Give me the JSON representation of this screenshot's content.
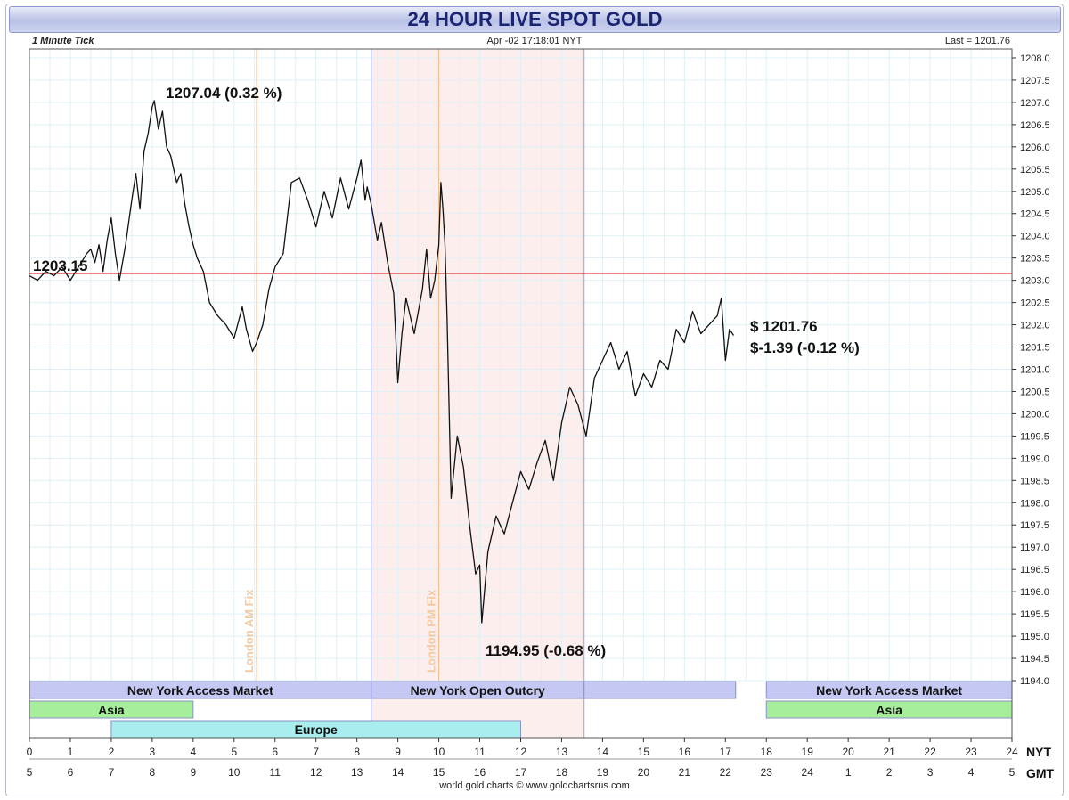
{
  "header": {
    "title": "24 HOUR LIVE SPOT GOLD",
    "tick": "1 Minute Tick",
    "datetime": "Apr -02  17:18:01  NYT",
    "last": "Last = 1201.76"
  },
  "footer": "world gold charts © www.goldchartsrus.com",
  "colors": {
    "price_line": "#111111",
    "prev_close_line": "#e03030",
    "fix_line": "#f2b98a",
    "session_line": "#9aa0e0",
    "open_outcry_shade": "#fdeeee",
    "ny_band": "#c4c8f2",
    "asia_band": "#a6ee9c",
    "europe_band": "#a8eeee"
  },
  "chart_data": {
    "type": "line",
    "title": "24 HOUR LIVE SPOT GOLD",
    "xlabel": "",
    "ylabel": "",
    "x_axis_nyt_ticks": [
      "0",
      "1",
      "2",
      "3",
      "4",
      "5",
      "6",
      "7",
      "8",
      "9",
      "10",
      "11",
      "12",
      "13",
      "14",
      "15",
      "16",
      "17",
      "18",
      "19",
      "20",
      "21",
      "22",
      "23",
      "24"
    ],
    "x_axis_gmt_ticks": [
      "5",
      "6",
      "7",
      "8",
      "9",
      "10",
      "11",
      "12",
      "13",
      "14",
      "15",
      "16",
      "17",
      "18",
      "19",
      "20",
      "21",
      "22",
      "23",
      "24",
      "1",
      "2",
      "3",
      "4",
      "5"
    ],
    "x_axis_nyt_label": "NYT",
    "x_axis_gmt_label": "GMT",
    "xlim": [
      0,
      24
    ],
    "ylim": [
      1194.0,
      1208.2
    ],
    "y_ticks": [
      "1208.0",
      "1207.5",
      "1207.0",
      "1206.5",
      "1206.0",
      "1205.5",
      "1205.0",
      "1204.5",
      "1204.0",
      "1203.5",
      "1203.0",
      "1202.5",
      "1202.0",
      "1201.5",
      "1201.0",
      "1200.5",
      "1200.0",
      "1199.5",
      "1199.0",
      "1198.5",
      "1198.0",
      "1197.5",
      "1197.0",
      "1196.5",
      "1196.0",
      "1195.5",
      "1195.0",
      "1194.5",
      "1194.0"
    ],
    "grid": true,
    "previous_close": 1203.15,
    "series": [
      {
        "x": [
          0.0,
          0.2,
          0.4,
          0.6,
          0.8,
          1.0,
          1.2,
          1.4,
          1.5,
          1.6,
          1.7,
          1.8,
          1.9,
          2.0,
          2.1,
          2.2,
          2.35,
          2.5,
          2.6,
          2.7,
          2.8,
          2.9,
          3.0,
          3.05,
          3.15,
          3.25,
          3.35,
          3.45,
          3.6,
          3.7,
          3.8,
          3.9,
          4.0,
          4.1,
          4.25,
          4.4,
          4.6,
          4.8,
          5.0,
          5.2,
          5.3,
          5.45,
          5.55,
          5.7,
          5.85,
          6.0,
          6.2,
          6.4,
          6.6,
          6.8,
          7.0,
          7.2,
          7.4,
          7.6,
          7.8,
          8.0,
          8.1,
          8.2,
          8.25,
          8.35,
          8.5,
          8.6,
          8.75,
          8.9,
          9.0,
          9.1,
          9.2,
          9.4,
          9.6,
          9.7,
          9.8,
          9.9,
          10.0,
          10.05,
          10.1,
          10.15,
          10.2,
          10.3,
          10.45,
          10.6,
          10.75,
          10.9,
          11.0,
          11.05,
          11.2,
          11.4,
          11.6,
          11.8,
          12.0,
          12.2,
          12.4,
          12.6,
          12.8,
          13.0,
          13.2,
          13.4,
          13.6,
          13.8,
          14.0,
          14.2,
          14.4,
          14.6,
          14.8,
          15.0,
          15.2,
          15.4,
          15.6,
          15.8,
          16.0,
          16.2,
          16.4,
          16.6,
          16.8,
          16.9,
          17.0,
          17.1,
          17.2
        ],
        "values": [
          1203.1,
          1203.0,
          1203.2,
          1203.1,
          1203.3,
          1203.0,
          1203.3,
          1203.6,
          1203.7,
          1203.4,
          1203.8,
          1203.2,
          1203.9,
          1204.4,
          1203.6,
          1203.0,
          1203.8,
          1204.8,
          1205.4,
          1204.6,
          1205.9,
          1206.3,
          1206.9,
          1207.04,
          1206.4,
          1206.8,
          1206.0,
          1205.8,
          1205.2,
          1205.4,
          1204.7,
          1204.2,
          1203.8,
          1203.5,
          1203.2,
          1202.5,
          1202.2,
          1202.0,
          1201.7,
          1202.4,
          1201.9,
          1201.4,
          1201.6,
          1202.0,
          1202.8,
          1203.3,
          1203.6,
          1205.2,
          1205.3,
          1204.8,
          1204.2,
          1205.0,
          1204.4,
          1205.3,
          1204.6,
          1205.3,
          1205.7,
          1204.8,
          1205.1,
          1204.7,
          1203.9,
          1204.3,
          1203.4,
          1202.7,
          1200.7,
          1201.8,
          1202.6,
          1201.8,
          1202.8,
          1203.7,
          1202.6,
          1203.0,
          1203.8,
          1205.2,
          1204.6,
          1203.8,
          1202.2,
          1198.1,
          1199.5,
          1198.8,
          1197.5,
          1196.4,
          1196.6,
          1195.3,
          1196.9,
          1197.7,
          1197.3,
          1198.0,
          1198.7,
          1198.3,
          1198.9,
          1199.4,
          1198.5,
          1199.8,
          1200.6,
          1200.2,
          1199.5,
          1200.8,
          1201.2,
          1201.6,
          1201.0,
          1201.4,
          1200.4,
          1200.9,
          1200.6,
          1201.2,
          1201.0,
          1201.9,
          1201.6,
          1202.3,
          1201.8,
          1202.0,
          1202.2,
          1202.6,
          1201.2,
          1201.9,
          1201.76
        ]
      }
    ],
    "vertical_markers": [
      {
        "x": 5.55,
        "label": "London AM Fix"
      },
      {
        "x": 10.0,
        "label": "London PM Fix"
      }
    ],
    "session_lines": [
      8.35,
      13.55
    ],
    "shaded_region": [
      8.35,
      13.55
    ],
    "annotations": {
      "high": "1207.04  (0.32 %)",
      "low": "1194.95  (-0.68 %)",
      "prev_close": "1203.15",
      "last_price": "$ 1201.76",
      "last_change": "$-1.39  (-0.12 %)"
    },
    "session_bands": [
      {
        "row": 0,
        "label": "New York Access Market",
        "start": 0.0,
        "end": 8.35,
        "kind": "ny"
      },
      {
        "row": 0,
        "label": "New York Open Outcry",
        "start": 8.35,
        "end": 13.55,
        "kind": "ny"
      },
      {
        "row": 0,
        "label": "",
        "start": 13.55,
        "end": 17.25,
        "kind": "ny"
      },
      {
        "row": 0,
        "label": "New York Access Market",
        "start": 18.0,
        "end": 24.0,
        "kind": "ny"
      },
      {
        "row": 1,
        "label": "Asia",
        "start": 0.0,
        "end": 4.0,
        "kind": "asia"
      },
      {
        "row": 1,
        "label": "Asia",
        "start": 18.0,
        "end": 24.0,
        "kind": "asia"
      },
      {
        "row": 2,
        "label": "Europe",
        "start": 2.0,
        "end": 12.0,
        "kind": "europe"
      }
    ]
  }
}
